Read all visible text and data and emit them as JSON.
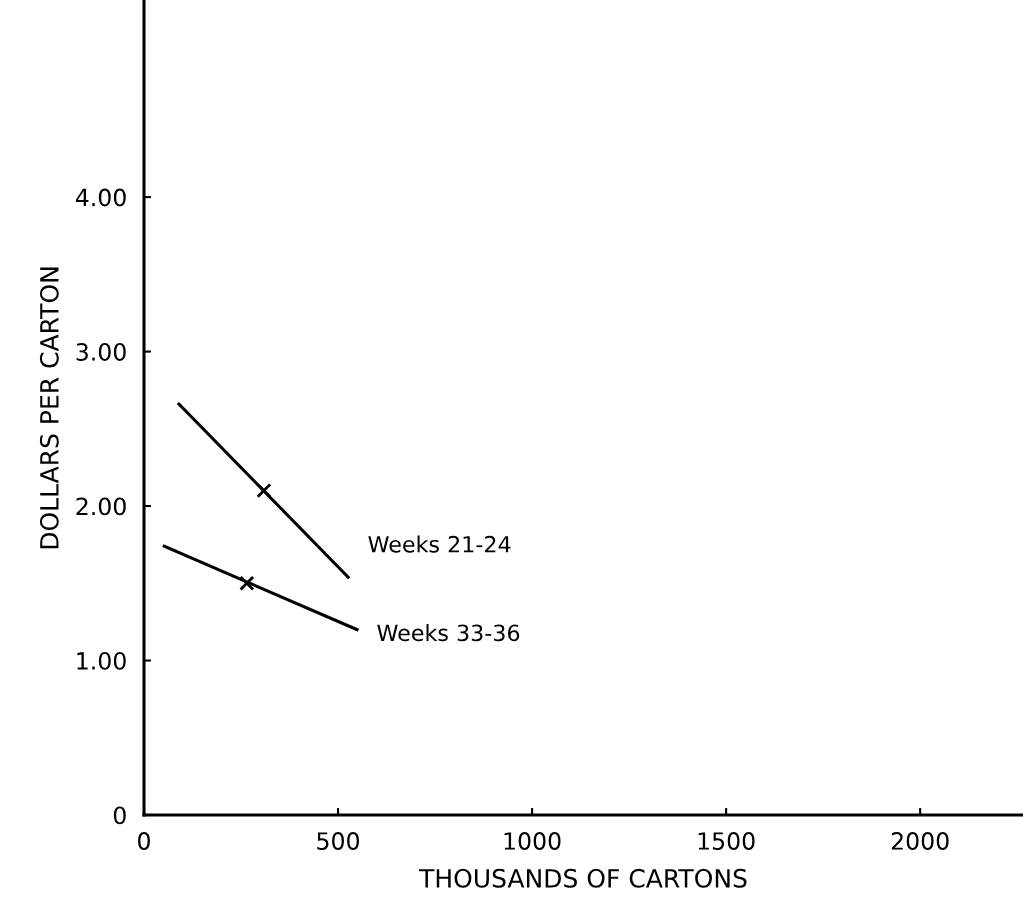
{
  "chart_data": {
    "type": "line",
    "xlabel": "THOUSANDS OF CARTONS",
    "ylabel": "DOLLARS PER CARTON",
    "xlim": [
      0,
      2265
    ],
    "ylim": [
      0,
      5.27
    ],
    "xticks": [
      0,
      500,
      1000,
      1500,
      2000
    ],
    "yticks": [
      0,
      {
        "value": 1,
        "label": "1.00"
      },
      {
        "value": 2,
        "label": "2.00"
      },
      {
        "value": 3,
        "label": "3.00"
      },
      {
        "value": 4,
        "label": "4.00"
      }
    ],
    "grid": false,
    "legend": false,
    "line_style": "solid",
    "series": [
      {
        "name": "Weeks 21-24",
        "color": "#000000",
        "x": [
          90,
          526
        ],
        "values": [
          2.66,
          1.54
        ]
      },
      {
        "name": "Weeks 33-36",
        "color": "#000000",
        "x": [
          52,
          549
        ],
        "values": [
          1.74,
          1.2
        ]
      },
      {
        "type": "scatter",
        "marker": "cross",
        "color": "#000000",
        "x": [
          309,
          265
        ],
        "values": [
          2.1,
          1.5
        ]
      }
    ]
  }
}
